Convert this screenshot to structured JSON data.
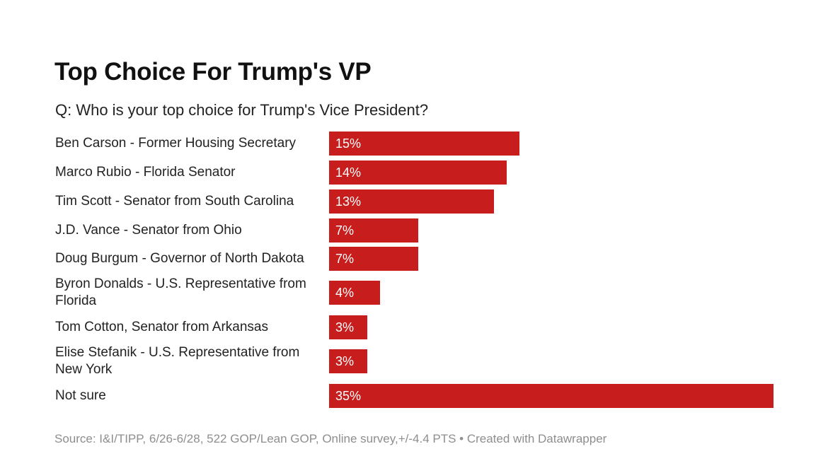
{
  "chart_data": {
    "type": "bar",
    "orientation": "horizontal",
    "title": "Top Choice For Trump's VP",
    "subtitle": "Q: Who is your top choice for Trump's Vice President?",
    "categories": [
      "Ben Carson - Former Housing Secretary",
      "Marco Rubio - Florida Senator",
      "Tim Scott - Senator from South Carolina",
      "J.D. Vance - Senator from Ohio",
      "Doug Burgum - Governor of North Dakota",
      "Byron Donalds - U.S. Representative from Florida",
      "Tom Cotton, Senator from Arkansas",
      "Elise Stefanik - U.S. Representative from New York",
      "Not sure"
    ],
    "values": [
      15,
      14,
      13,
      7,
      7,
      4,
      3,
      3,
      35
    ],
    "value_labels": [
      "15%",
      "14%",
      "13%",
      "7%",
      "7%",
      "4%",
      "3%",
      "3%",
      "35%"
    ],
    "unit": "%",
    "bar_color": "#c71e1d",
    "grid": false,
    "source": "Source: I&I/TIPP, 6/26-6/28, 522 GOP/Lean GOP, Online survey,+/-4.4 PTS • Created with Datawrapper"
  }
}
